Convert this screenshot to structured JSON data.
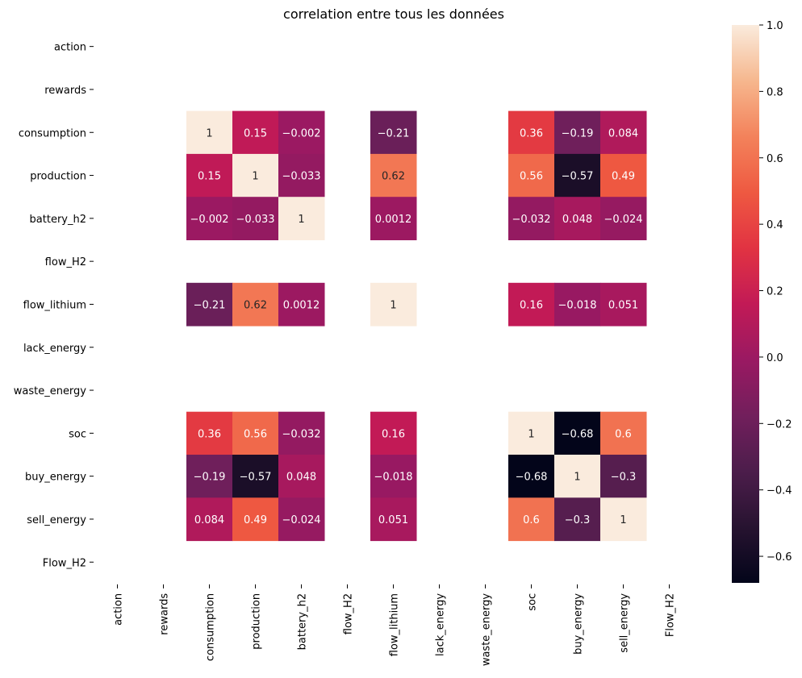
{
  "chart_data": {
    "type": "heatmap",
    "title": "correlation entre tous les données",
    "xlabel": "",
    "ylabel": "",
    "rows": [
      "action",
      "rewards",
      "consumption",
      "production",
      "battery_h2",
      "flow_H2",
      "flow_lithium",
      "lack_energy",
      "waste_energy",
      "soc",
      "buy_energy",
      "sell_energy",
      "Flow_H2"
    ],
    "cols": [
      "action",
      "rewards",
      "consumption",
      "production",
      "battery_h2",
      "flow_H2",
      "flow_lithium",
      "lack_energy",
      "waste_energy",
      "soc",
      "buy_energy",
      "sell_energy",
      "Flow_H2"
    ],
    "values": [
      [
        null,
        null,
        null,
        null,
        null,
        null,
        null,
        null,
        null,
        null,
        null,
        null,
        null
      ],
      [
        null,
        null,
        null,
        null,
        null,
        null,
        null,
        null,
        null,
        null,
        null,
        null,
        null
      ],
      [
        null,
        null,
        1,
        0.15,
        -0.002,
        null,
        -0.21,
        null,
        null,
        0.36,
        -0.19,
        0.084,
        null
      ],
      [
        null,
        null,
        0.15,
        1,
        -0.033,
        null,
        0.62,
        null,
        null,
        0.56,
        -0.57,
        0.49,
        null
      ],
      [
        null,
        null,
        -0.002,
        -0.033,
        1,
        null,
        0.0012,
        null,
        null,
        -0.032,
        0.048,
        -0.024,
        null
      ],
      [
        null,
        null,
        null,
        null,
        null,
        null,
        null,
        null,
        null,
        null,
        null,
        null,
        null
      ],
      [
        null,
        null,
        -0.21,
        0.62,
        0.0012,
        null,
        1,
        null,
        null,
        0.16,
        -0.018,
        0.051,
        null
      ],
      [
        null,
        null,
        null,
        null,
        null,
        null,
        null,
        null,
        null,
        null,
        null,
        null,
        null
      ],
      [
        null,
        null,
        null,
        null,
        null,
        null,
        null,
        null,
        null,
        null,
        null,
        null,
        null
      ],
      [
        null,
        null,
        0.36,
        0.56,
        -0.032,
        null,
        0.16,
        null,
        null,
        1,
        -0.68,
        0.6,
        null
      ],
      [
        null,
        null,
        -0.19,
        -0.57,
        0.048,
        null,
        -0.018,
        null,
        null,
        -0.68,
        1,
        -0.3,
        null
      ],
      [
        null,
        null,
        0.084,
        0.49,
        -0.024,
        null,
        0.051,
        null,
        null,
        0.6,
        -0.3,
        1,
        null
      ],
      [
        null,
        null,
        null,
        null,
        null,
        null,
        null,
        null,
        null,
        null,
        null,
        null,
        null
      ]
    ],
    "colorbar": {
      "vmin": -0.68,
      "vmax": 1.0,
      "ticks": [
        -0.6,
        -0.4,
        -0.2,
        0.0,
        0.2,
        0.4,
        0.6,
        0.8,
        1.0
      ],
      "tick_labels": [
        "−0.6",
        "−0.4",
        "−0.2",
        "0.0",
        "0.2",
        "0.4",
        "0.6",
        "0.8",
        "1.0"
      ]
    },
    "colormap": "rocket",
    "annotations": true,
    "legend": "colorbar-right",
    "grid": false
  }
}
